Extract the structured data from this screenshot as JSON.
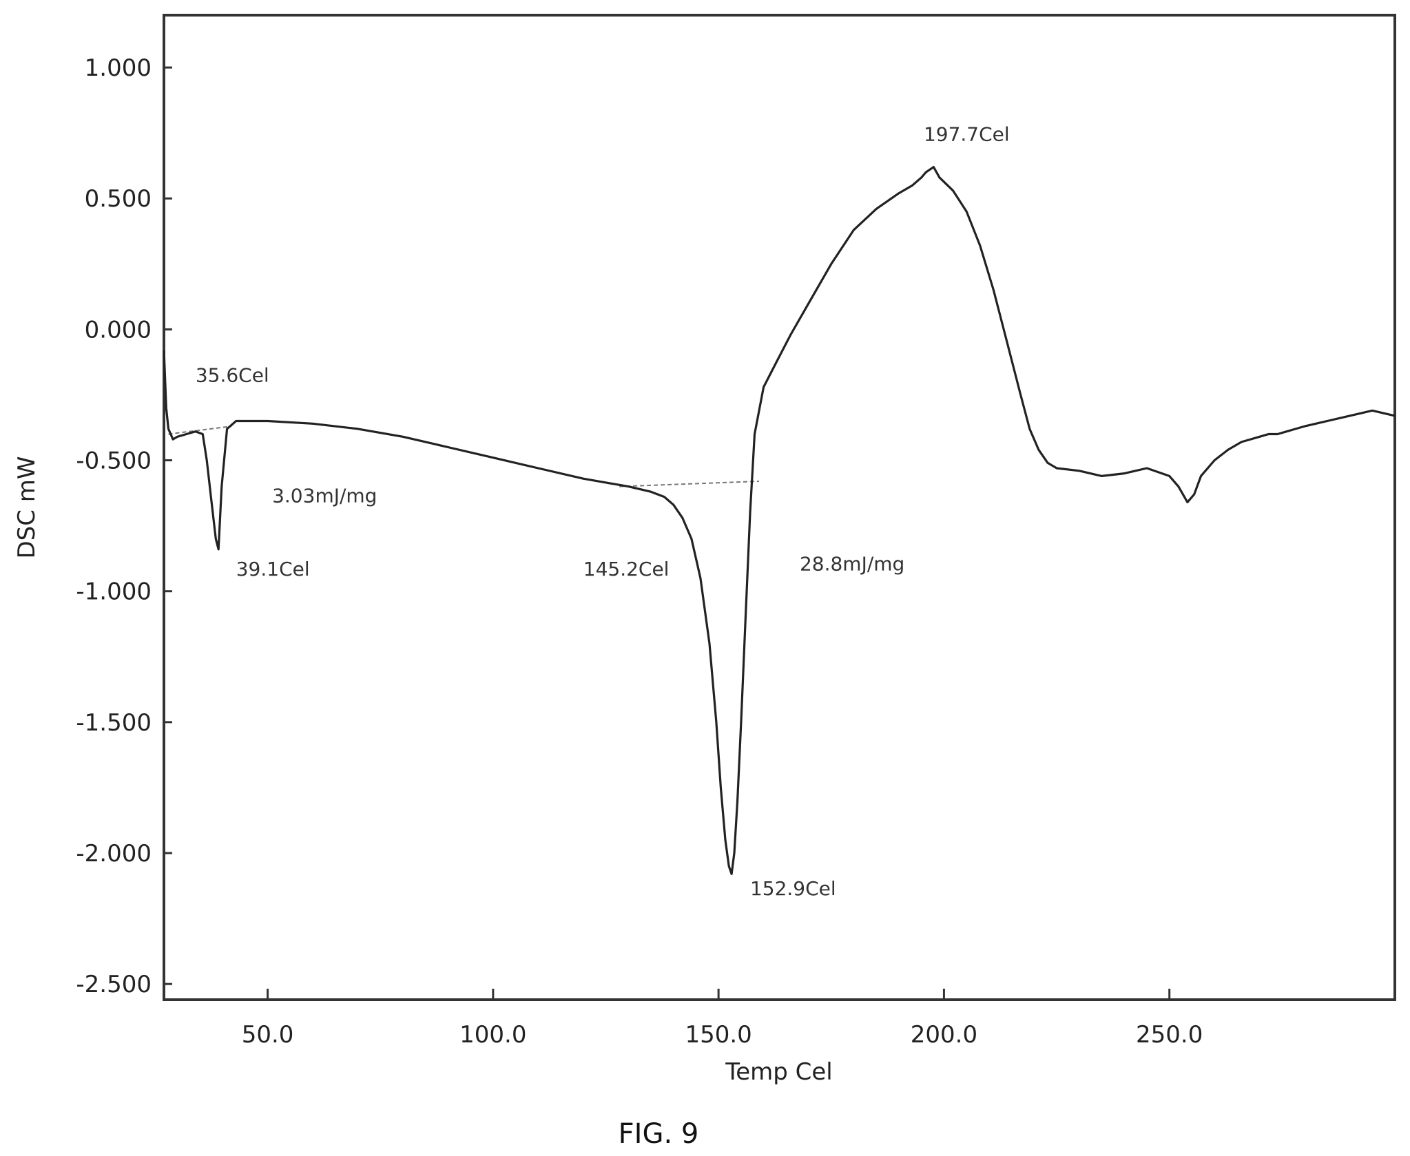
{
  "chart_data": {
    "type": "line",
    "xlabel": "Temp Cel",
    "ylabel": "DSC mW",
    "xlim": [
      27,
      300
    ],
    "ylim": [
      -2.56,
      1.2
    ],
    "x_ticks": [
      50,
      100,
      150,
      200,
      250
    ],
    "x_tick_labels": [
      "50.0",
      "100.0",
      "150.0",
      "200.0",
      "250.0"
    ],
    "y_ticks": [
      1.0,
      0.5,
      0.0,
      -0.5,
      -1.0,
      -1.5,
      -2.0,
      -2.5
    ],
    "y_tick_labels": [
      "1.000",
      "0.500",
      "0.000",
      "-0.500",
      "-1.000",
      "-1.500",
      "-2.000",
      "-2.500"
    ],
    "grid": false,
    "series": [
      {
        "x": [
          27,
          27.5,
          28,
          29,
          30,
          32,
          34,
          35.6,
          36.5,
          37.5,
          38.5,
          39.1,
          39.8,
          41,
          43,
          50,
          60,
          70,
          80,
          90,
          100,
          110,
          120,
          130,
          135,
          138,
          140,
          142,
          144,
          146,
          148,
          149.5,
          150.5,
          151.5,
          152.3,
          152.9,
          153.5,
          154.2,
          155,
          156,
          157,
          158,
          160,
          163,
          166,
          170,
          175,
          180,
          185,
          190,
          193,
          195,
          196,
          197.7,
          199,
          202,
          205,
          208,
          211,
          214,
          217,
          219,
          221,
          223,
          225,
          230,
          235,
          240,
          245,
          250,
          252,
          254,
          255.5,
          257,
          260,
          263,
          266,
          268,
          270,
          272,
          274,
          276,
          278,
          280,
          285,
          290,
          295,
          300
        ],
        "values": [
          -0.08,
          -0.3,
          -0.38,
          -0.42,
          -0.41,
          -0.4,
          -0.39,
          -0.4,
          -0.5,
          -0.65,
          -0.8,
          -0.84,
          -0.6,
          -0.38,
          -0.35,
          -0.35,
          -0.36,
          -0.38,
          -0.41,
          -0.45,
          -0.49,
          -0.53,
          -0.57,
          -0.6,
          -0.62,
          -0.64,
          -0.67,
          -0.72,
          -0.8,
          -0.95,
          -1.2,
          -1.5,
          -1.75,
          -1.95,
          -2.05,
          -2.08,
          -2.0,
          -1.8,
          -1.5,
          -1.1,
          -0.7,
          -0.4,
          -0.22,
          -0.12,
          -0.02,
          0.1,
          0.25,
          0.38,
          0.46,
          0.52,
          0.55,
          0.58,
          0.6,
          0.62,
          0.58,
          0.53,
          0.45,
          0.32,
          0.15,
          -0.05,
          -0.25,
          -0.38,
          -0.46,
          -0.51,
          -0.53,
          -0.54,
          -0.56,
          -0.55,
          -0.53,
          -0.56,
          -0.6,
          -0.66,
          -0.63,
          -0.56,
          -0.5,
          -0.46,
          -0.43,
          -0.42,
          -0.41,
          -0.4,
          -0.4,
          -0.39,
          -0.38,
          -0.37,
          -0.35,
          -0.33,
          -0.31,
          -0.33
        ]
      }
    ],
    "annotations": [
      {
        "text": "35.6Cel",
        "x": 34,
        "y": -0.2
      },
      {
        "text": "3.03mJ/mg",
        "x": 51,
        "y": -0.66
      },
      {
        "text": "39.1Cel",
        "x": 43,
        "y": -0.94
      },
      {
        "text": "145.2Cel",
        "x": 120,
        "y": -0.94
      },
      {
        "text": "28.8mJ/mg",
        "x": 168,
        "y": -0.92
      },
      {
        "text": "197.7Cel",
        "x": 195.5,
        "y": 0.72
      },
      {
        "text": "152.9Cel",
        "x": 157,
        "y": -2.16
      }
    ],
    "baselines": [
      {
        "x": [
          28,
          42
        ],
        "y": [
          -0.4,
          -0.37
        ]
      },
      {
        "x": [
          128,
          159
        ],
        "y": [
          -0.6,
          -0.58
        ]
      }
    ]
  },
  "figure": {
    "caption": "FIG. 9"
  }
}
